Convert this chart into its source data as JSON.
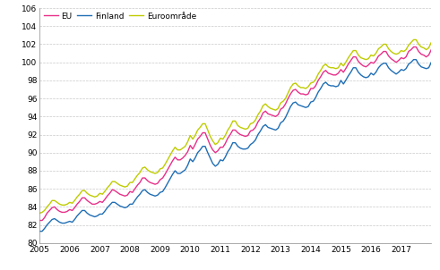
{
  "eu_color": "#E8308A",
  "finland_color": "#1F6EB5",
  "euro_color": "#BFCC00",
  "line_width": 1.0,
  "ylim": [
    80,
    106
  ],
  "yticks": [
    80,
    82,
    84,
    86,
    88,
    90,
    92,
    94,
    96,
    98,
    100,
    102,
    104,
    106
  ],
  "legend_labels": [
    "EU",
    "Finland",
    "Euroområde"
  ],
  "grid_color": "#BBBBBB",
  "grid_style": "--",
  "background_color": "#FFFFFF",
  "eu": [
    82.5,
    82.5,
    82.8,
    83.3,
    83.6,
    83.9,
    84.0,
    83.7,
    83.5,
    83.4,
    83.4,
    83.5,
    83.7,
    83.6,
    83.9,
    84.3,
    84.6,
    85.0,
    85.0,
    84.7,
    84.5,
    84.3,
    84.3,
    84.4,
    84.6,
    84.5,
    84.8,
    85.2,
    85.5,
    85.9,
    85.8,
    85.6,
    85.4,
    85.3,
    85.2,
    85.3,
    85.7,
    85.6,
    86.0,
    86.4,
    86.7,
    87.2,
    87.2,
    86.9,
    86.7,
    86.6,
    86.5,
    86.6,
    87.0,
    87.2,
    87.6,
    88.1,
    88.6,
    89.1,
    89.5,
    89.2,
    89.2,
    89.4,
    89.7,
    90.1,
    90.8,
    90.4,
    90.9,
    91.5,
    91.8,
    92.2,
    92.2,
    91.5,
    90.8,
    90.3,
    90.0,
    90.2,
    90.6,
    90.6,
    91.0,
    91.6,
    92.0,
    92.5,
    92.5,
    92.2,
    92.0,
    91.9,
    91.8,
    91.9,
    92.4,
    92.5,
    92.8,
    93.4,
    93.8,
    94.4,
    94.6,
    94.3,
    94.2,
    94.1,
    94.0,
    94.2,
    94.8,
    95.0,
    95.4,
    96.0,
    96.5,
    96.9,
    97.0,
    96.7,
    96.5,
    96.5,
    96.4,
    96.5,
    97.1,
    97.1,
    97.4,
    98.0,
    98.4,
    98.9,
    99.1,
    98.8,
    98.7,
    98.6,
    98.6,
    98.8,
    99.2,
    98.9,
    99.3,
    99.8,
    100.2,
    100.6,
    100.6,
    100.1,
    99.8,
    99.6,
    99.5,
    99.7,
    100.0,
    99.9,
    100.2,
    100.7,
    100.9,
    101.2,
    101.2,
    100.7,
    100.4,
    100.2,
    100.0,
    100.2,
    100.5,
    100.4,
    100.6,
    101.2,
    101.4,
    101.7,
    101.7,
    101.2,
    100.9,
    100.8,
    100.6,
    100.8,
    101.4,
    101.7,
    102.2,
    102.7,
    103.2,
    103.6,
    103.6,
    103.1,
    102.9,
    102.8,
    102.7,
    102.9
  ],
  "finland": [
    81.3,
    81.3,
    81.6,
    82.0,
    82.3,
    82.6,
    82.7,
    82.5,
    82.3,
    82.2,
    82.2,
    82.3,
    82.4,
    82.3,
    82.6,
    83.0,
    83.3,
    83.6,
    83.6,
    83.3,
    83.1,
    83.0,
    82.9,
    83.0,
    83.2,
    83.2,
    83.5,
    83.9,
    84.2,
    84.5,
    84.5,
    84.3,
    84.1,
    84.0,
    83.9,
    84.0,
    84.3,
    84.3,
    84.7,
    85.1,
    85.4,
    85.8,
    85.9,
    85.6,
    85.4,
    85.3,
    85.2,
    85.3,
    85.6,
    85.7,
    86.1,
    86.6,
    87.1,
    87.6,
    88.0,
    87.7,
    87.7,
    87.9,
    88.1,
    88.6,
    89.3,
    89.0,
    89.4,
    90.0,
    90.3,
    90.7,
    90.7,
    90.0,
    89.4,
    88.8,
    88.5,
    88.7,
    89.2,
    89.1,
    89.5,
    90.1,
    90.5,
    91.1,
    91.1,
    90.7,
    90.5,
    90.4,
    90.4,
    90.5,
    90.9,
    91.1,
    91.4,
    92.0,
    92.4,
    92.9,
    93.1,
    92.8,
    92.7,
    92.6,
    92.5,
    92.7,
    93.3,
    93.5,
    93.9,
    94.5,
    95.1,
    95.5,
    95.6,
    95.3,
    95.2,
    95.1,
    95.0,
    95.1,
    95.6,
    95.7,
    96.1,
    96.7,
    97.1,
    97.6,
    97.8,
    97.5,
    97.4,
    97.4,
    97.3,
    97.4,
    98.0,
    97.6,
    98.0,
    98.5,
    98.9,
    99.4,
    99.4,
    98.9,
    98.6,
    98.4,
    98.3,
    98.4,
    98.8,
    98.6,
    98.9,
    99.4,
    99.7,
    99.9,
    99.9,
    99.4,
    99.1,
    98.9,
    98.7,
    98.9,
    99.2,
    99.1,
    99.3,
    99.8,
    100.0,
    100.3,
    100.3,
    99.8,
    99.5,
    99.4,
    99.3,
    99.4,
    100.0,
    100.3,
    100.7,
    101.3,
    101.8,
    102.3,
    102.3,
    101.8,
    101.5,
    101.4,
    101.3,
    101.5
  ],
  "euro": [
    83.3,
    83.4,
    83.6,
    84.0,
    84.3,
    84.7,
    84.7,
    84.5,
    84.3,
    84.2,
    84.2,
    84.3,
    84.5,
    84.4,
    84.7,
    85.1,
    85.4,
    85.8,
    85.8,
    85.5,
    85.3,
    85.2,
    85.1,
    85.2,
    85.5,
    85.4,
    85.7,
    86.1,
    86.4,
    86.8,
    86.8,
    86.6,
    86.4,
    86.3,
    86.2,
    86.3,
    86.7,
    86.7,
    87.1,
    87.5,
    87.8,
    88.3,
    88.4,
    88.1,
    87.9,
    87.8,
    87.7,
    87.8,
    88.2,
    88.3,
    88.7,
    89.2,
    89.7,
    90.2,
    90.6,
    90.3,
    90.3,
    90.5,
    90.7,
    91.2,
    91.9,
    91.5,
    91.9,
    92.5,
    92.8,
    93.2,
    93.2,
    92.5,
    91.8,
    91.3,
    90.9,
    91.1,
    91.6,
    91.5,
    91.9,
    92.5,
    92.9,
    93.5,
    93.5,
    93.0,
    92.8,
    92.7,
    92.6,
    92.7,
    93.2,
    93.3,
    93.6,
    94.2,
    94.6,
    95.2,
    95.4,
    95.1,
    94.9,
    94.8,
    94.7,
    94.9,
    95.5,
    95.7,
    96.0,
    96.6,
    97.2,
    97.6,
    97.7,
    97.4,
    97.2,
    97.2,
    97.1,
    97.3,
    97.7,
    97.8,
    98.1,
    98.7,
    99.1,
    99.6,
    99.8,
    99.5,
    99.4,
    99.4,
    99.3,
    99.4,
    99.9,
    99.6,
    100.0,
    100.5,
    100.9,
    101.3,
    101.3,
    100.8,
    100.5,
    100.4,
    100.3,
    100.4,
    100.8,
    100.7,
    101.0,
    101.5,
    101.7,
    102.0,
    102.0,
    101.5,
    101.2,
    101.0,
    100.9,
    101.0,
    101.3,
    101.2,
    101.4,
    101.9,
    102.2,
    102.5,
    102.5,
    102.0,
    101.7,
    101.6,
    101.4,
    101.6,
    102.2,
    102.5,
    102.9,
    103.4,
    103.9,
    104.4,
    104.4,
    103.9,
    103.6,
    103.5,
    103.4,
    103.6
  ]
}
